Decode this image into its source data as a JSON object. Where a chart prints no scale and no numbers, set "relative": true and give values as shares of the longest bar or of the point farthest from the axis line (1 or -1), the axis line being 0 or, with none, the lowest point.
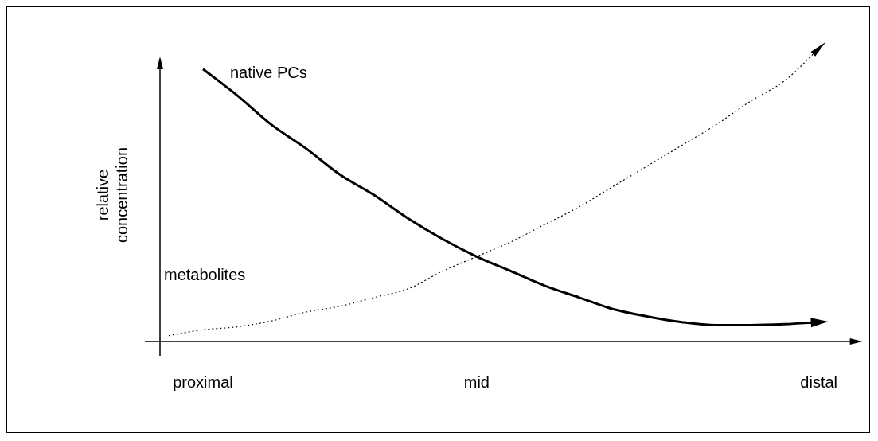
{
  "chart_data": {
    "type": "line",
    "relative": true,
    "ylabel": "relative\nconcentration",
    "legend": false,
    "marker": "none",
    "categories": [
      null,
      "proximal",
      null,
      null,
      null,
      null,
      null,
      null,
      null,
      "mid",
      null,
      null,
      null,
      null,
      null,
      null,
      null,
      null,
      null,
      "distal"
    ],
    "series": [
      {
        "name": "native PCs",
        "color": "#000000",
        "line_style": "solid",
        "values": [
          null,
          0.93,
          0.84,
          0.74,
          0.66,
          0.57,
          0.5,
          0.42,
          0.35,
          0.29,
          0.24,
          0.19,
          0.15,
          0.11,
          0.085,
          0.066,
          0.056,
          0.056,
          0.059,
          0.066
        ]
      },
      {
        "name": "metabolites",
        "color": "#000000",
        "line_style": "dotted",
        "values": [
          0.02,
          0.04,
          0.05,
          0.07,
          0.1,
          0.12,
          0.15,
          0.18,
          0.24,
          0.29,
          0.34,
          0.4,
          0.46,
          0.53,
          0.6,
          0.67,
          0.74,
          0.82,
          0.89,
          1
        ]
      }
    ]
  }
}
